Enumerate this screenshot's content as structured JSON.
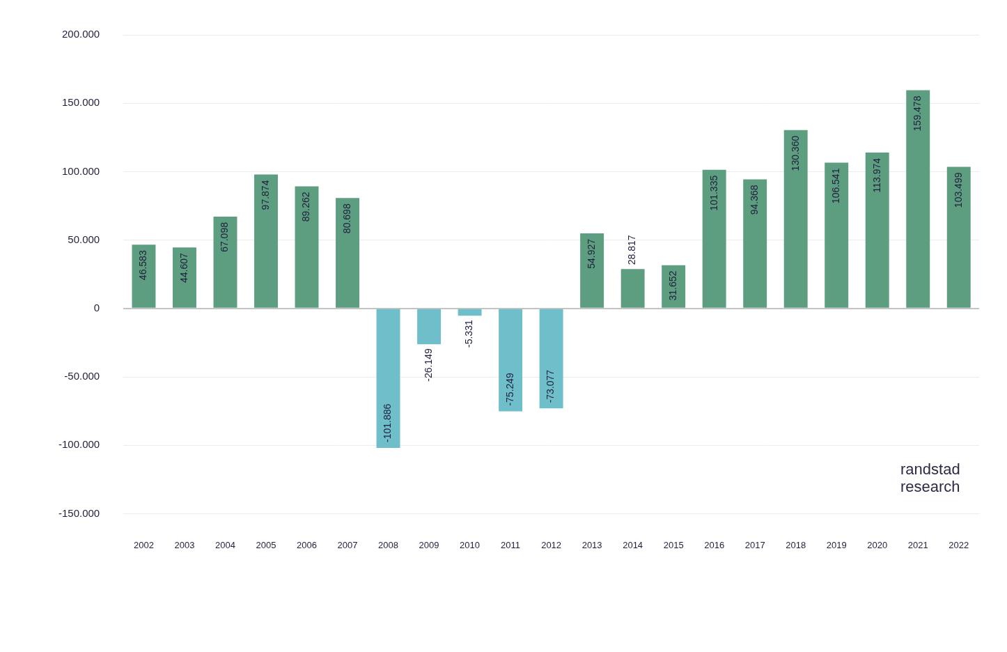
{
  "chart_data": {
    "type": "bar",
    "categories": [
      "2002",
      "2003",
      "2004",
      "2005",
      "2006",
      "2007",
      "2008",
      "2009",
      "2010",
      "2011",
      "2012",
      "2013",
      "2014",
      "2015",
      "2016",
      "2017",
      "2018",
      "2019",
      "2020",
      "2021",
      "2022"
    ],
    "values": [
      46583,
      44607,
      67098,
      97874,
      89262,
      80698,
      -101886,
      -26149,
      -5331,
      -75249,
      -73077,
      54927,
      28817,
      31652,
      101335,
      94368,
      130360,
      106541,
      113974,
      159478,
      103499
    ],
    "value_labels": [
      "46.583",
      "44.607",
      "67.098",
      "97.874",
      "89.262",
      "80.698",
      "-101.886",
      "-26.149",
      "-5.331",
      "-75.249",
      "-73.077",
      "54.927",
      "28.817",
      "31.652",
      "101.335",
      "94.368",
      "130.360",
      "106.541",
      "113.974",
      "159.478",
      "103.499"
    ],
    "colors": [
      "#5e9e80",
      "#5e9e80",
      "#5e9e80",
      "#5e9e80",
      "#5e9e80",
      "#5e9e80",
      "#6fbfcb",
      "#6fbfcb",
      "#6fbfcb",
      "#6fbfcb",
      "#6fbfcb",
      "#5e9e80",
      "#5e9e80",
      "#5e9e80",
      "#5e9e80",
      "#5e9e80",
      "#5e9e80",
      "#5e9e80",
      "#5e9e80",
      "#5e9e80",
      "#5e9e80"
    ],
    "ylim": [
      -150000,
      200000
    ],
    "yticks": [
      {
        "value": -150000,
        "label": "-150.000"
      },
      {
        "value": -100000,
        "label": "-100.000"
      },
      {
        "value": -50000,
        "label": "-50.000"
      },
      0,
      {
        "value": 50000,
        "label": "50.000"
      },
      {
        "value": 100000,
        "label": "100.000"
      },
      {
        "value": 150000,
        "label": "150.000"
      },
      {
        "value": 200000,
        "label": "200.000"
      }
    ],
    "grid": true,
    "data_labels": true,
    "annotation": [
      "randstad",
      "research"
    ]
  }
}
